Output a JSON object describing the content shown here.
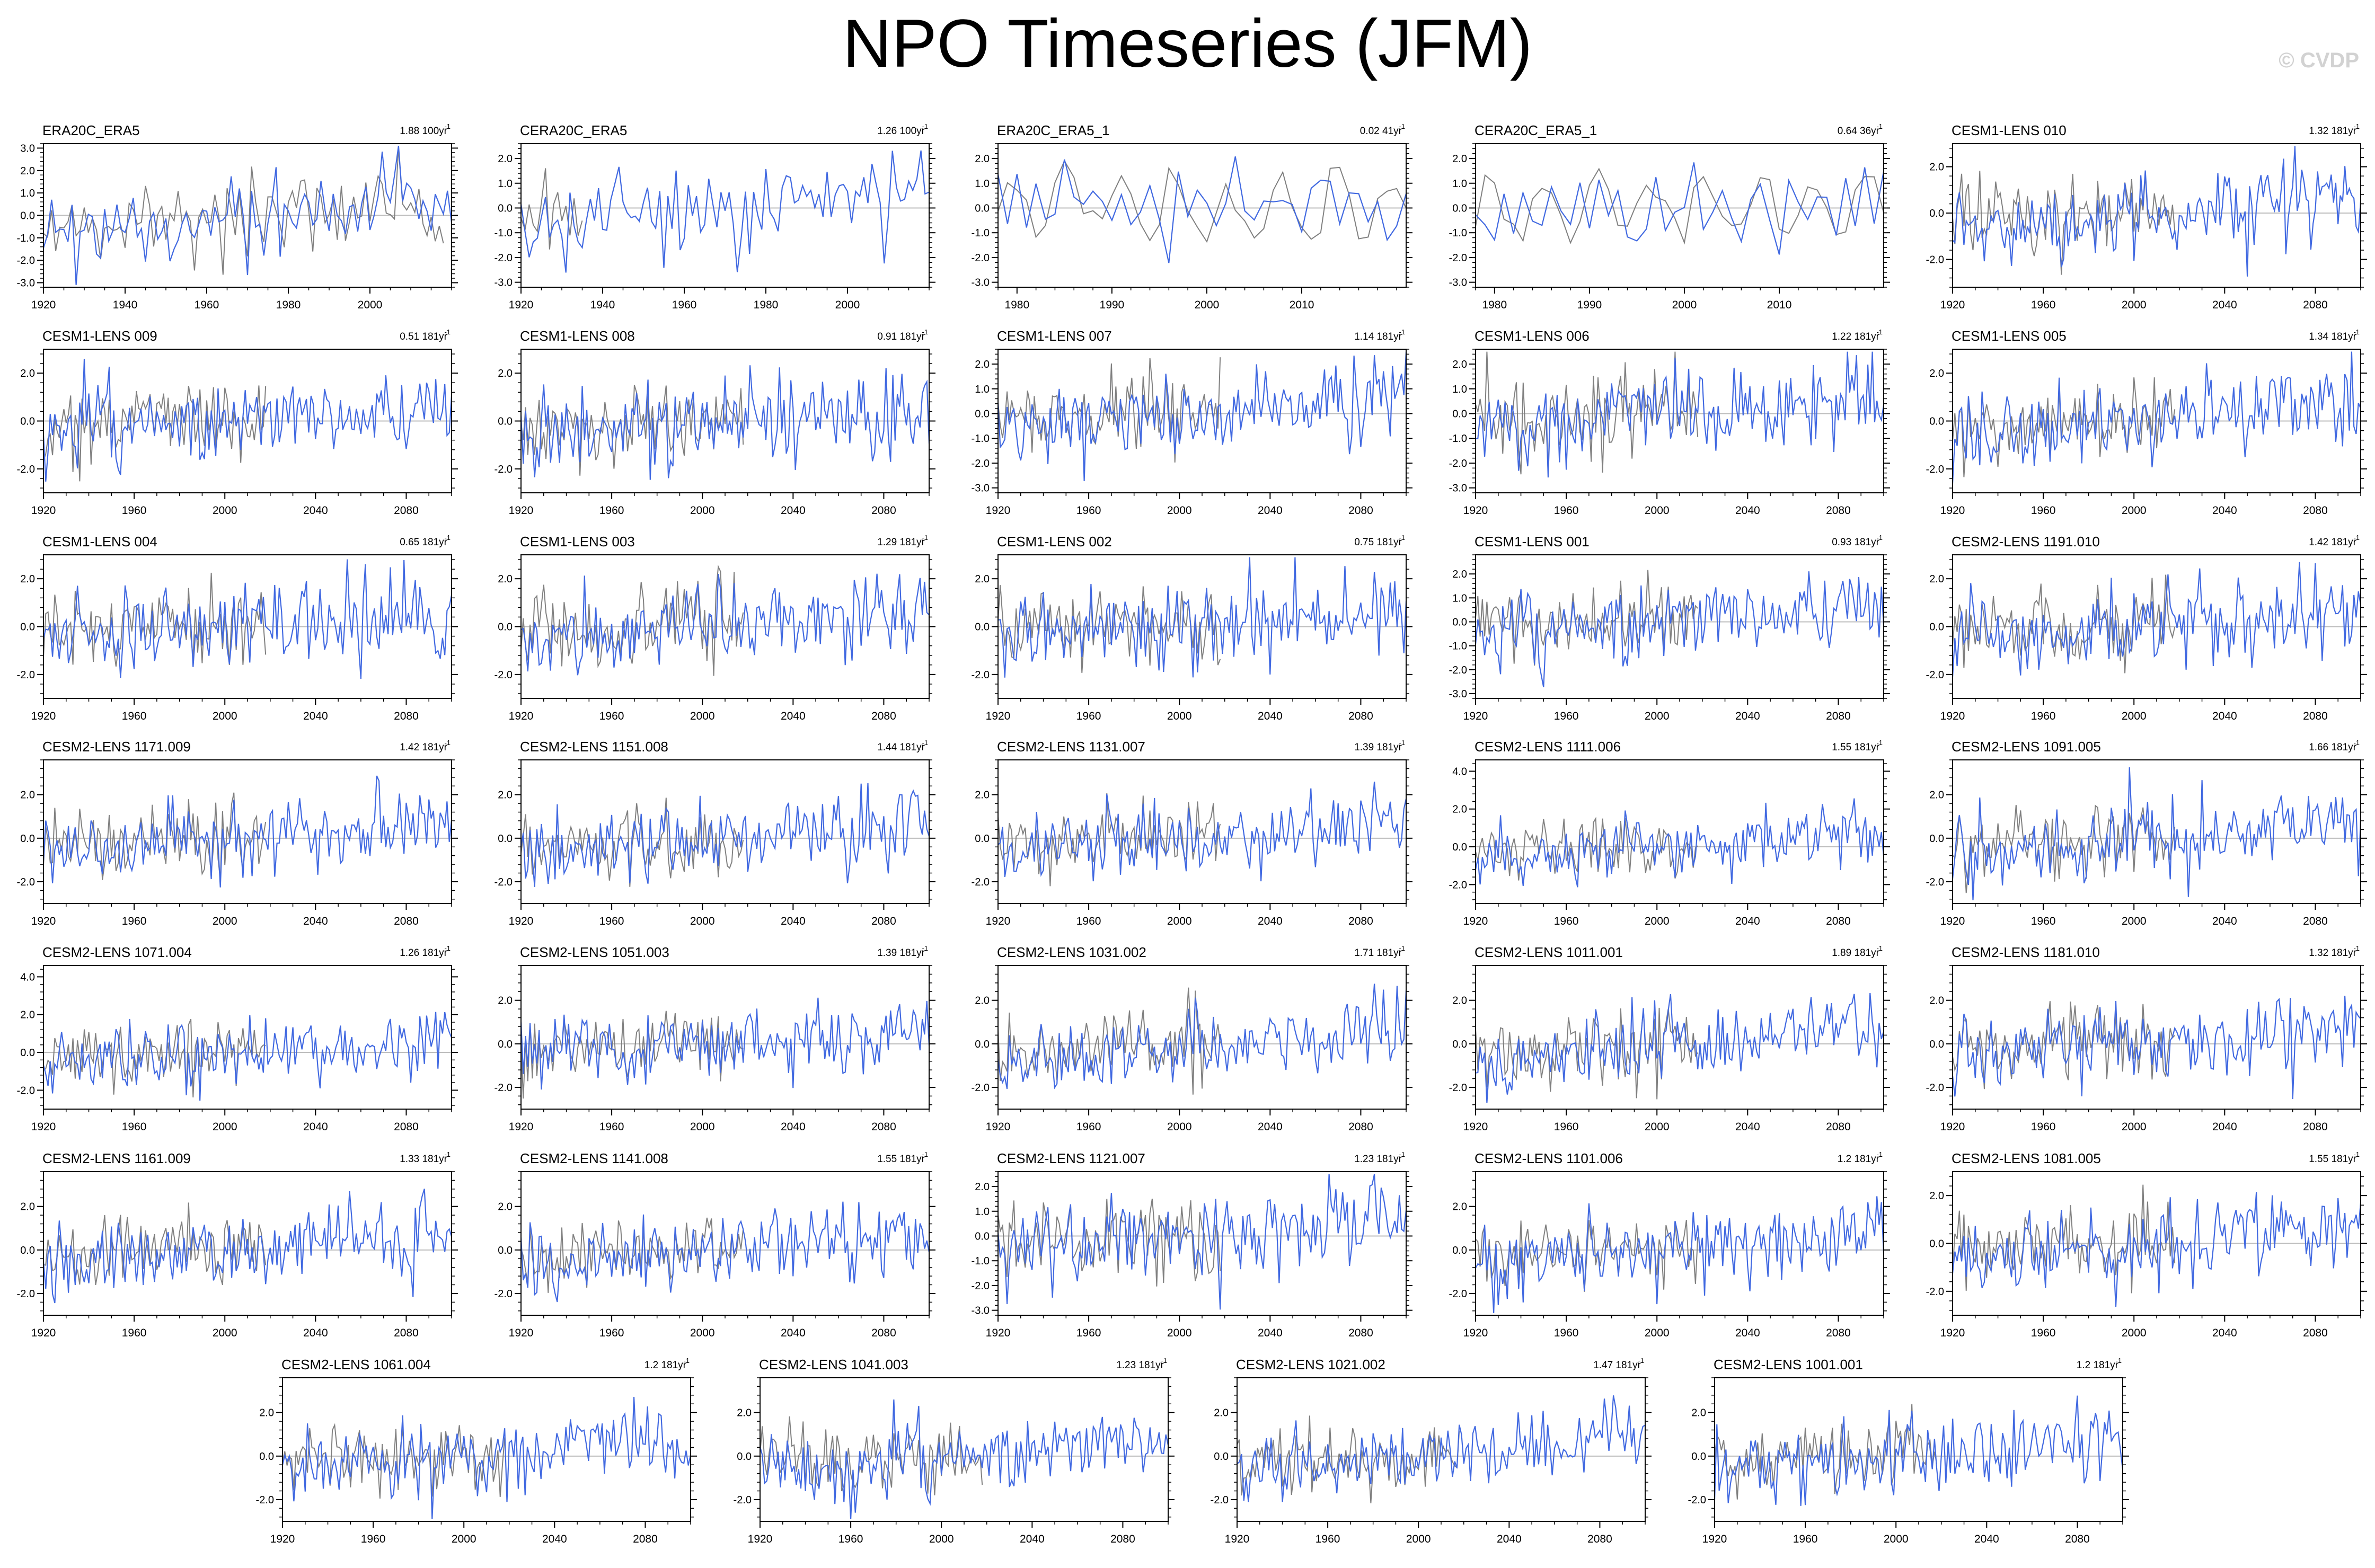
{
  "title": "NPO Timeseries (JFM)",
  "watermark": "© CVDP",
  "colors": {
    "model_line": "#4169e1",
    "observation_line": "#808080",
    "zero_line": "#bdbdbd",
    "frame": "#000000"
  },
  "chart_data": [
    {
      "type": "line",
      "title": "ERA20C_ERA5",
      "trend": "1.88 100yr",
      "trend_exp": "-1",
      "x_range": [
        1920,
        2020
      ],
      "x_ticks": [
        1920,
        1940,
        1960,
        1980,
        2000
      ],
      "ylim": [
        -3.2,
        3.2
      ],
      "y_ticks": [
        -3.0,
        -2.0,
        -1.0,
        0.0,
        1.0,
        2.0,
        3.0
      ],
      "amp": 1.1,
      "trend_slope": 0.018,
      "seed": 1,
      "series": [
        {
          "values": []
        }
      ]
    },
    {
      "type": "line",
      "title": "CERA20C_ERA5",
      "trend": "1.26 100yr",
      "trend_exp": "-1",
      "x_range": [
        1920,
        2020
      ],
      "x_ticks": [
        1920,
        1940,
        1960,
        1980,
        2000
      ],
      "ylim": [
        -3.2,
        2.6
      ],
      "y_ticks": [
        -3.0,
        -2.0,
        -1.0,
        0.0,
        1.0,
        2.0
      ],
      "amp": 1.0,
      "trend_slope": 0.012,
      "seed": 2,
      "obs_until": 1935,
      "series": [
        {
          "values": []
        }
      ]
    },
    {
      "type": "line",
      "title": "ERA20C_ERA5_1",
      "trend": "0.02 41yr",
      "trend_exp": "-1",
      "x_range": [
        1978,
        2021
      ],
      "x_ticks": [
        1980,
        1990,
        2000,
        2010
      ],
      "ylim": [
        -3.2,
        2.6
      ],
      "y_ticks": [
        -3.0,
        -2.0,
        -1.0,
        0.0,
        1.0,
        2.0
      ],
      "amp": 1.0,
      "trend_slope": 0.0,
      "seed": 3,
      "obs_full": true,
      "series": [
        {
          "values": []
        }
      ]
    },
    {
      "type": "line",
      "title": "CERA20C_ERA5_1",
      "trend": "0.64 36yr",
      "trend_exp": "-1",
      "x_range": [
        1978,
        2021
      ],
      "x_ticks": [
        1980,
        1990,
        2000,
        2010
      ],
      "ylim": [
        -3.2,
        2.6
      ],
      "y_ticks": [
        -3.0,
        -2.0,
        -1.0,
        0.0,
        1.0,
        2.0
      ],
      "amp": 1.0,
      "trend_slope": 0.0,
      "seed": 4,
      "obs_full": true,
      "series": [
        {
          "values": []
        }
      ]
    },
    {
      "type": "line",
      "title": "CESM1-LENS 010",
      "trend": "1.32 181yr",
      "trend_exp": "-1",
      "x_range": [
        1920,
        2100
      ],
      "x_ticks": [
        1920,
        1960,
        2000,
        2040,
        2080
      ],
      "ylim": [
        -3.2,
        3.0
      ],
      "y_ticks": [
        -2.0,
        0.0,
        2.0
      ],
      "amp": 1.0,
      "trend_slope": 0.0085,
      "seed": 5,
      "series": [
        {
          "values": []
        }
      ]
    },
    {
      "type": "line",
      "title": "CESM1-LENS 009",
      "trend": "0.51 181yr",
      "trend_exp": "-1",
      "x_range": [
        1920,
        2100
      ],
      "x_ticks": [
        1920,
        1960,
        2000,
        2040,
        2080
      ],
      "ylim": [
        -3.0,
        3.0
      ],
      "y_ticks": [
        -2.0,
        0.0,
        2.0
      ],
      "amp": 1.0,
      "trend_slope": 0.003,
      "seed": 6,
      "series": [
        {
          "values": []
        }
      ]
    },
    {
      "type": "line",
      "title": "CESM1-LENS 008",
      "trend": "0.91 181yr",
      "trend_exp": "-1",
      "x_range": [
        1920,
        2100
      ],
      "x_ticks": [
        1920,
        1960,
        2000,
        2040,
        2080
      ],
      "ylim": [
        -3.0,
        3.0
      ],
      "y_ticks": [
        -2.0,
        0.0,
        2.0
      ],
      "amp": 1.0,
      "trend_slope": 0.005,
      "seed": 7,
      "series": [
        {
          "values": []
        }
      ]
    },
    {
      "type": "line",
      "title": "CESM1-LENS 007",
      "trend": "1.14 181yr",
      "trend_exp": "-1",
      "x_range": [
        1920,
        2100
      ],
      "x_ticks": [
        1920,
        1960,
        2000,
        2040,
        2080
      ],
      "ylim": [
        -3.2,
        2.6
      ],
      "y_ticks": [
        -3.0,
        -2.0,
        -1.0,
        0.0,
        1.0,
        2.0
      ],
      "amp": 1.0,
      "trend_slope": 0.006,
      "seed": 8,
      "series": [
        {
          "values": []
        }
      ]
    },
    {
      "type": "line",
      "title": "CESM1-LENS 006",
      "trend": "1.22 181yr",
      "trend_exp": "-1",
      "x_range": [
        1920,
        2100
      ],
      "x_ticks": [
        1920,
        1960,
        2000,
        2040,
        2080
      ],
      "ylim": [
        -3.2,
        2.6
      ],
      "y_ticks": [
        -3.0,
        -2.0,
        -1.0,
        0.0,
        1.0,
        2.0
      ],
      "amp": 1.0,
      "trend_slope": 0.007,
      "seed": 9,
      "series": [
        {
          "values": []
        }
      ]
    },
    {
      "type": "line",
      "title": "CESM1-LENS 005",
      "trend": "1.34 181yr",
      "trend_exp": "-1",
      "x_range": [
        1920,
        2100
      ],
      "x_ticks": [
        1920,
        1960,
        2000,
        2040,
        2080
      ],
      "ylim": [
        -3.0,
        3.0
      ],
      "y_ticks": [
        -2.0,
        0.0,
        2.0
      ],
      "amp": 1.0,
      "trend_slope": 0.0075,
      "seed": 10,
      "series": [
        {
          "values": []
        }
      ]
    },
    {
      "type": "line",
      "title": "CESM1-LENS 004",
      "trend": "0.65 181yr",
      "trend_exp": "-1",
      "x_range": [
        1920,
        2100
      ],
      "x_ticks": [
        1920,
        1960,
        2000,
        2040,
        2080
      ],
      "ylim": [
        -3.0,
        3.0
      ],
      "y_ticks": [
        -2.0,
        0.0,
        2.0
      ],
      "amp": 1.0,
      "trend_slope": 0.004,
      "seed": 11,
      "series": [
        {
          "values": []
        }
      ]
    },
    {
      "type": "line",
      "title": "CESM1-LENS 003",
      "trend": "1.29 181yr",
      "trend_exp": "-1",
      "x_range": [
        1920,
        2100
      ],
      "x_ticks": [
        1920,
        1960,
        2000,
        2040,
        2080
      ],
      "ylim": [
        -3.0,
        3.0
      ],
      "y_ticks": [
        -2.0,
        0.0,
        2.0
      ],
      "amp": 1.0,
      "trend_slope": 0.0075,
      "seed": 12,
      "series": [
        {
          "values": []
        }
      ]
    },
    {
      "type": "line",
      "title": "CESM1-LENS 002",
      "trend": "0.75 181yr",
      "trend_exp": "-1",
      "x_range": [
        1920,
        2100
      ],
      "x_ticks": [
        1920,
        1960,
        2000,
        2040,
        2080
      ],
      "ylim": [
        -3.0,
        3.0
      ],
      "y_ticks": [
        -2.0,
        0.0,
        2.0
      ],
      "amp": 1.0,
      "trend_slope": 0.0045,
      "seed": 13,
      "series": [
        {
          "values": []
        }
      ]
    },
    {
      "type": "line",
      "title": "CESM1-LENS 001",
      "trend": "0.93 181yr",
      "trend_exp": "-1",
      "x_range": [
        1920,
        2100
      ],
      "x_ticks": [
        1920,
        1960,
        2000,
        2040,
        2080
      ],
      "ylim": [
        -3.2,
        2.8
      ],
      "y_ticks": [
        -3.0,
        -2.0,
        -1.0,
        0.0,
        1.0,
        2.0
      ],
      "amp": 1.0,
      "trend_slope": 0.0055,
      "seed": 14,
      "series": [
        {
          "values": []
        }
      ]
    },
    {
      "type": "line",
      "title": "CESM2-LENS 1191.010",
      "trend": "1.42 181yr",
      "trend_exp": "-1",
      "x_range": [
        1920,
        2100
      ],
      "x_ticks": [
        1920,
        1960,
        2000,
        2040,
        2080
      ],
      "ylim": [
        -3.0,
        3.0
      ],
      "y_ticks": [
        -2.0,
        0.0,
        2.0
      ],
      "amp": 1.0,
      "trend_slope": 0.008,
      "seed": 15,
      "series": [
        {
          "values": []
        }
      ]
    },
    {
      "type": "line",
      "title": "CESM2-LENS 1171.009",
      "trend": "1.42 181yr",
      "trend_exp": "-1",
      "x_range": [
        1920,
        2100
      ],
      "x_ticks": [
        1920,
        1960,
        2000,
        2040,
        2080
      ],
      "ylim": [
        -3.0,
        3.6
      ],
      "y_ticks": [
        -2.0,
        0.0,
        2.0
      ],
      "amp": 1.0,
      "trend_slope": 0.008,
      "seed": 16,
      "series": [
        {
          "values": []
        }
      ]
    },
    {
      "type": "line",
      "title": "CESM2-LENS 1151.008",
      "trend": "1.44 181yr",
      "trend_exp": "-1",
      "x_range": [
        1920,
        2100
      ],
      "x_ticks": [
        1920,
        1960,
        2000,
        2040,
        2080
      ],
      "ylim": [
        -3.0,
        3.6
      ],
      "y_ticks": [
        -2.0,
        0.0,
        2.0
      ],
      "amp": 1.0,
      "trend_slope": 0.008,
      "seed": 17,
      "series": [
        {
          "values": []
        }
      ]
    },
    {
      "type": "line",
      "title": "CESM2-LENS 1131.007",
      "trend": "1.39 181yr",
      "trend_exp": "-1",
      "x_range": [
        1920,
        2100
      ],
      "x_ticks": [
        1920,
        1960,
        2000,
        2040,
        2080
      ],
      "ylim": [
        -3.0,
        3.6
      ],
      "y_ticks": [
        -2.0,
        0.0,
        2.0
      ],
      "amp": 1.0,
      "trend_slope": 0.008,
      "seed": 18,
      "series": [
        {
          "values": []
        }
      ]
    },
    {
      "type": "line",
      "title": "CESM2-LENS 1111.006",
      "trend": "1.55 181yr",
      "trend_exp": "-1",
      "x_range": [
        1920,
        2100
      ],
      "x_ticks": [
        1920,
        1960,
        2000,
        2040,
        2080
      ],
      "ylim": [
        -3.0,
        4.6
      ],
      "y_ticks": [
        -2.0,
        0.0,
        2.0,
        4.0
      ],
      "amp": 1.0,
      "trend_slope": 0.0085,
      "seed": 19,
      "series": [
        {
          "values": []
        }
      ]
    },
    {
      "type": "line",
      "title": "CESM2-LENS 1091.005",
      "trend": "1.66 181yr",
      "trend_exp": "-1",
      "x_range": [
        1920,
        2100
      ],
      "x_ticks": [
        1920,
        1960,
        2000,
        2040,
        2080
      ],
      "ylim": [
        -3.0,
        3.6
      ],
      "y_ticks": [
        -2.0,
        0.0,
        2.0
      ],
      "amp": 1.0,
      "trend_slope": 0.009,
      "seed": 20,
      "series": [
        {
          "values": []
        }
      ]
    },
    {
      "type": "line",
      "title": "CESM2-LENS 1071.004",
      "trend": "1.26 181yr",
      "trend_exp": "-1",
      "x_range": [
        1920,
        2100
      ],
      "x_ticks": [
        1920,
        1960,
        2000,
        2040,
        2080
      ],
      "ylim": [
        -3.0,
        4.6
      ],
      "y_ticks": [
        -2.0,
        0.0,
        2.0,
        4.0
      ],
      "amp": 1.0,
      "trend_slope": 0.007,
      "seed": 21,
      "series": [
        {
          "values": []
        }
      ]
    },
    {
      "type": "line",
      "title": "CESM2-LENS 1051.003",
      "trend": "1.39 181yr",
      "trend_exp": "-1",
      "x_range": [
        1920,
        2100
      ],
      "x_ticks": [
        1920,
        1960,
        2000,
        2040,
        2080
      ],
      "ylim": [
        -3.0,
        3.6
      ],
      "y_ticks": [
        -2.0,
        0.0,
        2.0
      ],
      "amp": 1.0,
      "trend_slope": 0.008,
      "seed": 22,
      "series": [
        {
          "values": []
        }
      ]
    },
    {
      "type": "line",
      "title": "CESM2-LENS 1031.002",
      "trend": "1.71 181yr",
      "trend_exp": "-1",
      "x_range": [
        1920,
        2100
      ],
      "x_ticks": [
        1920,
        1960,
        2000,
        2040,
        2080
      ],
      "ylim": [
        -3.0,
        3.6
      ],
      "y_ticks": [
        -2.0,
        0.0,
        2.0
      ],
      "amp": 1.0,
      "trend_slope": 0.0095,
      "seed": 23,
      "series": [
        {
          "values": []
        }
      ]
    },
    {
      "type": "line",
      "title": "CESM2-LENS 1011.001",
      "trend": "1.89 181yr",
      "trend_exp": "-1",
      "x_range": [
        1920,
        2100
      ],
      "x_ticks": [
        1920,
        1960,
        2000,
        2040,
        2080
      ],
      "ylim": [
        -3.0,
        3.6
      ],
      "y_ticks": [
        -2.0,
        0.0,
        2.0
      ],
      "amp": 1.0,
      "trend_slope": 0.0105,
      "seed": 24,
      "series": [
        {
          "values": []
        }
      ]
    },
    {
      "type": "line",
      "title": "CESM2-LENS 1181.010",
      "trend": "1.32 181yr",
      "trend_exp": "-1",
      "x_range": [
        1920,
        2100
      ],
      "x_ticks": [
        1920,
        1960,
        2000,
        2040,
        2080
      ],
      "ylim": [
        -3.0,
        3.6
      ],
      "y_ticks": [
        -2.0,
        0.0,
        2.0
      ],
      "amp": 1.0,
      "trend_slope": 0.0075,
      "seed": 25,
      "series": [
        {
          "values": []
        }
      ]
    },
    {
      "type": "line",
      "title": "CESM2-LENS 1161.009",
      "trend": "1.33 181yr",
      "trend_exp": "-1",
      "x_range": [
        1920,
        2100
      ],
      "x_ticks": [
        1920,
        1960,
        2000,
        2040,
        2080
      ],
      "ylim": [
        -3.0,
        3.6
      ],
      "y_ticks": [
        -2.0,
        0.0,
        2.0
      ],
      "amp": 1.0,
      "trend_slope": 0.0075,
      "seed": 26,
      "series": [
        {
          "values": []
        }
      ]
    },
    {
      "type": "line",
      "title": "CESM2-LENS 1141.008",
      "trend": "1.55 181yr",
      "trend_exp": "-1",
      "x_range": [
        1920,
        2100
      ],
      "x_ticks": [
        1920,
        1960,
        2000,
        2040,
        2080
      ],
      "ylim": [
        -3.0,
        3.6
      ],
      "y_ticks": [
        -2.0,
        0.0,
        2.0
      ],
      "amp": 1.0,
      "trend_slope": 0.0085,
      "seed": 27,
      "series": [
        {
          "values": []
        }
      ]
    },
    {
      "type": "line",
      "title": "CESM2-LENS 1121.007",
      "trend": "1.23 181yr",
      "trend_exp": "-1",
      "x_range": [
        1920,
        2100
      ],
      "x_ticks": [
        1920,
        1960,
        2000,
        2040,
        2080
      ],
      "ylim": [
        -3.2,
        2.6
      ],
      "y_ticks": [
        -3.0,
        -2.0,
        -1.0,
        0.0,
        1.0,
        2.0
      ],
      "amp": 1.0,
      "trend_slope": 0.007,
      "seed": 28,
      "series": [
        {
          "values": []
        }
      ]
    },
    {
      "type": "line",
      "title": "CESM2-LENS 1101.006",
      "trend": "1.2 181yr",
      "trend_exp": "-1",
      "x_range": [
        1920,
        2100
      ],
      "x_ticks": [
        1920,
        1960,
        2000,
        2040,
        2080
      ],
      "ylim": [
        -3.0,
        3.6
      ],
      "y_ticks": [
        -2.0,
        0.0,
        2.0
      ],
      "amp": 1.0,
      "trend_slope": 0.007,
      "seed": 29,
      "series": [
        {
          "values": []
        }
      ]
    },
    {
      "type": "line",
      "title": "CESM2-LENS 1081.005",
      "trend": "1.55 181yr",
      "trend_exp": "-1",
      "x_range": [
        1920,
        2100
      ],
      "x_ticks": [
        1920,
        1960,
        2000,
        2040,
        2080
      ],
      "ylim": [
        -3.0,
        3.0
      ],
      "y_ticks": [
        -2.0,
        0.0,
        2.0
      ],
      "amp": 1.0,
      "trend_slope": 0.0085,
      "seed": 30,
      "series": [
        {
          "values": []
        }
      ]
    },
    {
      "type": "line",
      "title": "CESM2-LENS 1061.004",
      "trend": "1.2 181yr",
      "trend_exp": "-1",
      "x_range": [
        1920,
        2100
      ],
      "x_ticks": [
        1920,
        1960,
        2000,
        2040,
        2080
      ],
      "ylim": [
        -3.0,
        3.6
      ],
      "y_ticks": [
        -2.0,
        0.0,
        2.0
      ],
      "amp": 1.0,
      "trend_slope": 0.007,
      "seed": 31,
      "series": [
        {
          "values": []
        }
      ]
    },
    {
      "type": "line",
      "title": "CESM2-LENS 1041.003",
      "trend": "1.23 181yr",
      "trend_exp": "-1",
      "x_range": [
        1920,
        2100
      ],
      "x_ticks": [
        1920,
        1960,
        2000,
        2040,
        2080
      ],
      "ylim": [
        -3.0,
        3.6
      ],
      "y_ticks": [
        -2.0,
        0.0,
        2.0
      ],
      "amp": 1.0,
      "trend_slope": 0.007,
      "seed": 32,
      "series": [
        {
          "values": []
        }
      ]
    },
    {
      "type": "line",
      "title": "CESM2-LENS 1021.002",
      "trend": "1.47 181yr",
      "trend_exp": "-1",
      "x_range": [
        1920,
        2100
      ],
      "x_ticks": [
        1920,
        1960,
        2000,
        2040,
        2080
      ],
      "ylim": [
        -3.0,
        3.6
      ],
      "y_ticks": [
        -2.0,
        0.0,
        2.0
      ],
      "amp": 1.0,
      "trend_slope": 0.0085,
      "seed": 33,
      "series": [
        {
          "values": []
        }
      ]
    },
    {
      "type": "line",
      "title": "CESM2-LENS 1001.001",
      "trend": "1.2 181yr",
      "trend_exp": "-1",
      "x_range": [
        1920,
        2100
      ],
      "x_ticks": [
        1920,
        1960,
        2000,
        2040,
        2080
      ],
      "ylim": [
        -3.0,
        3.6
      ],
      "y_ticks": [
        -2.0,
        0.0,
        2.0
      ],
      "amp": 1.0,
      "trend_slope": 0.007,
      "seed": 34,
      "series": [
        {
          "values": []
        }
      ]
    }
  ]
}
